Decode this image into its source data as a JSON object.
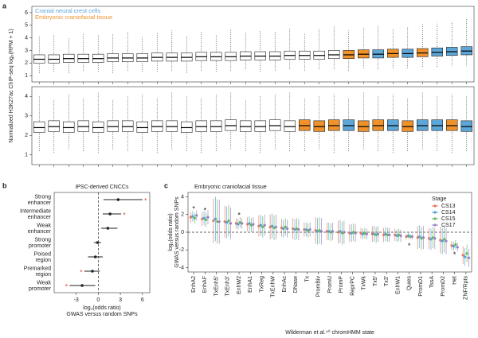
{
  "chart_data": [
    {
      "type": "box",
      "panel": "a",
      "ylabel": "Normalized H3K27ac ChIP-seq log₂(RPM + 1)",
      "series": [
        {
          "name": "Cranial neural crest cells",
          "color": "#5da6d8"
        },
        {
          "name": "Embryonic craniofacial tissue",
          "color": "#f0922b"
        }
      ],
      "ylim": [
        0.5,
        6.5
      ],
      "yticks": [
        1,
        2,
        3,
        4,
        5,
        6
      ],
      "low": [
        1.2,
        1.3,
        1.2,
        1.4,
        1.3,
        1.2,
        1.4,
        1.3,
        1.3,
        1.4,
        1.2,
        1.4,
        1.3,
        1.4,
        1.5,
        1.3,
        1.4,
        1.5,
        1.4,
        1.5,
        1.5,
        1.4,
        1.6,
        1.5,
        1.6,
        1.6,
        1.7,
        1.7,
        1.8,
        1.8
      ],
      "q1": [
        2.0,
        2.0,
        2.05,
        2.05,
        2.05,
        2.1,
        2.1,
        2.1,
        2.15,
        2.15,
        2.15,
        2.2,
        2.2,
        2.2,
        2.25,
        2.25,
        2.25,
        2.3,
        2.3,
        2.3,
        2.35,
        2.35,
        2.4,
        2.4,
        2.45,
        2.45,
        2.5,
        2.55,
        2.6,
        2.65
      ],
      "median": [
        2.3,
        2.3,
        2.35,
        2.35,
        2.35,
        2.4,
        2.4,
        2.4,
        2.45,
        2.45,
        2.45,
        2.5,
        2.5,
        2.5,
        2.55,
        2.55,
        2.55,
        2.6,
        2.6,
        2.6,
        2.65,
        2.65,
        2.7,
        2.7,
        2.75,
        2.75,
        2.8,
        2.85,
        2.9,
        2.95
      ],
      "q3": [
        2.65,
        2.65,
        2.7,
        2.7,
        2.7,
        2.75,
        2.75,
        2.75,
        2.8,
        2.8,
        2.8,
        2.85,
        2.85,
        2.85,
        2.9,
        2.9,
        2.9,
        2.95,
        2.95,
        2.95,
        3.0,
        3.0,
        3.05,
        3.05,
        3.1,
        3.1,
        3.15,
        3.2,
        3.25,
        3.3
      ],
      "high": [
        4.1,
        4.3,
        4.0,
        4.4,
        4.2,
        4.3,
        4.5,
        4.1,
        4.4,
        4.6,
        4.2,
        4.5,
        4.3,
        4.7,
        4.4,
        4.6,
        4.5,
        4.8,
        4.4,
        4.7,
        4.9,
        4.6,
        4.8,
        5.0,
        4.7,
        4.9,
        5.1,
        5.2,
        5.3,
        5.5
      ],
      "groups": [
        null,
        null,
        null,
        null,
        null,
        null,
        null,
        null,
        null,
        null,
        null,
        null,
        null,
        null,
        null,
        null,
        null,
        null,
        null,
        null,
        null,
        1,
        1,
        0,
        1,
        0,
        1,
        0,
        0,
        0
      ]
    },
    {
      "type": "box",
      "ylim": [
        0.5,
        4.5
      ],
      "yticks": [
        1,
        2,
        3,
        4
      ],
      "low": [
        1.2,
        1.1,
        1.3,
        1.2,
        1.1,
        1.3,
        1.2,
        1.2,
        1.1,
        1.3,
        1.2,
        1.1,
        1.2,
        1.3,
        1.2,
        1.1,
        1.3,
        1.2,
        1.2,
        1.3,
        1.1,
        1.2,
        1.3,
        1.2,
        1.1,
        1.2,
        1.3,
        1.2,
        1.1,
        1.2
      ],
      "q1": [
        2.15,
        2.2,
        2.15,
        2.2,
        2.15,
        2.2,
        2.2,
        2.15,
        2.2,
        2.2,
        2.15,
        2.2,
        2.2,
        2.25,
        2.2,
        2.2,
        2.25,
        2.2,
        2.25,
        2.2,
        2.25,
        2.25,
        2.2,
        2.25,
        2.25,
        2.2,
        2.25,
        2.25,
        2.25,
        2.2
      ],
      "median": [
        2.4,
        2.45,
        2.4,
        2.45,
        2.4,
        2.45,
        2.45,
        2.4,
        2.45,
        2.45,
        2.4,
        2.45,
        2.45,
        2.5,
        2.45,
        2.45,
        2.5,
        2.45,
        2.5,
        2.45,
        2.5,
        2.5,
        2.45,
        2.5,
        2.5,
        2.45,
        2.5,
        2.5,
        2.5,
        2.45
      ],
      "q3": [
        2.7,
        2.75,
        2.7,
        2.75,
        2.7,
        2.75,
        2.75,
        2.7,
        2.75,
        2.75,
        2.7,
        2.75,
        2.75,
        2.8,
        2.75,
        2.75,
        2.8,
        2.75,
        2.8,
        2.75,
        2.8,
        2.8,
        2.75,
        2.8,
        2.8,
        2.75,
        2.8,
        2.8,
        2.8,
        2.75
      ],
      "high": [
        4.0,
        3.8,
        4.1,
        3.9,
        4.2,
        3.8,
        4.0,
        4.1,
        3.9,
        4.2,
        4.0,
        3.9,
        4.1,
        4.2,
        3.8,
        4.0,
        4.1,
        4.2,
        3.9,
        4.0,
        4.1,
        3.9,
        4.2,
        4.0,
        4.1,
        3.9,
        4.2,
        4.0,
        4.1,
        4.0
      ],
      "groups": [
        null,
        null,
        null,
        null,
        null,
        null,
        null,
        null,
        null,
        null,
        null,
        null,
        null,
        null,
        null,
        null,
        null,
        null,
        1,
        1,
        1,
        0,
        1,
        1,
        0,
        1,
        0,
        0,
        1,
        0
      ]
    },
    {
      "type": "forest",
      "panel": "b",
      "title": "iPSC-derived CNCCs",
      "categories": [
        [
          "Strong",
          "enhancer"
        ],
        [
          "Intermediate",
          "enhancer"
        ],
        [
          "Weak",
          "enhancer"
        ],
        [
          "Strong",
          "promoter"
        ],
        [
          "Poised",
          "region"
        ],
        [
          "Premarked",
          "region"
        ],
        [
          "Weak",
          "promoter"
        ]
      ],
      "values": [
        2.7,
        1.6,
        1.3,
        -0.1,
        -0.4,
        -0.8,
        -2.2
      ],
      "ci_low": [
        0.7,
        0.6,
        0.4,
        -0.6,
        -1.4,
        -1.9,
        -3.9
      ],
      "ci_high": [
        6.0,
        3.1,
        2.6,
        0.4,
        0.6,
        0.2,
        -0.4
      ],
      "annotations": [
        {
          "text": "*",
          "category": 0,
          "side": "high"
        },
        {
          "text": "*",
          "category": 1,
          "side": "high"
        },
        {
          "text": "*",
          "category": 5,
          "side": "low"
        },
        {
          "text": "*",
          "category": 6,
          "side": "low"
        }
      ],
      "xlim": [
        -6,
        7
      ],
      "xticks": [
        -3,
        0,
        3,
        6
      ],
      "vline": 0,
      "color": "#222222",
      "star_color": "#e8534a",
      "xlabel": [
        "log₂(odds ratio)",
        "GWAS versus random SNPs"
      ]
    },
    {
      "type": "dots",
      "panel": "c",
      "title": "Embryonic craniofacial tissue",
      "categories": [
        "EnhA2",
        "EnhAF",
        "TxEnh5'",
        "TxEnh3'",
        "EnhW2",
        "EnhA1",
        "TxReg",
        "TxEnhW",
        "EnhAc",
        "DNase",
        "Tx",
        "PromBiv",
        "PromU",
        "PromP",
        "ReprPC",
        "TxWk",
        "Tx5'",
        "Tx3'",
        "EnhW1",
        "Quies",
        "PromD1",
        "TssA",
        "PromD2",
        "Het",
        "ZNF/Rpts"
      ],
      "legend_title": "Stage",
      "series": [
        {
          "name": "CS13",
          "color": "#e8735a",
          "values": [
            1.7,
            1.5,
            1.3,
            1.2,
            1.0,
            0.9,
            0.7,
            0.6,
            0.5,
            0.4,
            0.3,
            0.2,
            0.1,
            0.0,
            -0.1,
            -0.1,
            -0.2,
            -0.3,
            -0.3,
            -0.5,
            -0.6,
            -0.7,
            -0.9,
            -1.5,
            -2.6
          ],
          "errors": [
            0.6,
            0.8,
            2.5,
            1.8,
            0.6,
            0.8,
            1.2,
            1.4,
            1.0,
            1.2,
            0.8,
            1.5,
            1.0,
            1.3,
            1.0,
            0.6,
            0.9,
            0.8,
            0.7,
            0.3,
            1.3,
            1.2,
            1.5,
            0.5,
            1.0
          ]
        },
        {
          "name": "CS14",
          "color": "#4ba3d6",
          "values": [
            1.8,
            1.6,
            1.5,
            1.1,
            0.9,
            1.0,
            0.8,
            0.7,
            0.4,
            0.3,
            0.3,
            0.1,
            0.1,
            0.1,
            -0.1,
            -0.2,
            -0.2,
            -0.2,
            -0.4,
            -0.4,
            -0.5,
            -0.8,
            -1.0,
            -1.6,
            -2.8
          ],
          "errors": [
            0.6,
            0.8,
            2.5,
            1.8,
            0.6,
            0.8,
            1.2,
            1.4,
            1.0,
            1.2,
            0.8,
            1.5,
            1.0,
            1.3,
            1.0,
            0.6,
            0.9,
            0.8,
            0.7,
            0.3,
            1.3,
            1.2,
            1.5,
            0.5,
            1.0
          ]
        },
        {
          "name": "CS15",
          "color": "#5cb85c",
          "values": [
            1.6,
            1.4,
            1.2,
            1.3,
            1.1,
            0.8,
            0.6,
            0.5,
            0.6,
            0.4,
            0.2,
            0.2,
            0.0,
            -0.1,
            0.0,
            -0.1,
            -0.3,
            -0.3,
            -0.3,
            -0.5,
            -0.7,
            -0.6,
            -0.8,
            -1.4,
            -2.4
          ],
          "errors": [
            0.6,
            0.8,
            2.5,
            1.8,
            0.6,
            0.8,
            1.2,
            1.4,
            1.0,
            1.2,
            0.8,
            1.5,
            1.0,
            1.3,
            1.0,
            0.6,
            0.9,
            0.8,
            0.7,
            0.3,
            1.3,
            1.2,
            1.5,
            0.5,
            1.0
          ]
        },
        {
          "name": "CS17",
          "color": "#9b7fc4",
          "values": [
            1.9,
            1.7,
            1.2,
            1.0,
            1.0,
            0.9,
            0.8,
            0.6,
            0.4,
            0.3,
            0.3,
            0.1,
            0.1,
            0.0,
            -0.1,
            -0.2,
            -0.2,
            -0.3,
            -0.4,
            -0.5,
            -0.6,
            -0.7,
            -1.0,
            -1.7,
            -2.9
          ],
          "errors": [
            0.6,
            0.8,
            2.5,
            1.8,
            0.6,
            0.8,
            1.2,
            1.4,
            1.0,
            1.2,
            0.8,
            1.5,
            1.0,
            1.3,
            1.0,
            0.6,
            0.9,
            0.8,
            0.7,
            0.3,
            1.3,
            1.2,
            1.5,
            0.5,
            1.0
          ]
        }
      ],
      "annotations": [
        {
          "text": "*",
          "category": 0,
          "side": "high"
        },
        {
          "text": "*",
          "category": 1,
          "side": "high"
        },
        {
          "text": "*",
          "category": 4,
          "side": "high"
        },
        {
          "text": "*",
          "category": 19,
          "side": "low"
        },
        {
          "text": "*",
          "category": 23,
          "side": "low"
        }
      ],
      "ylim": [
        -4.5,
        4.5
      ],
      "yticks": [
        -4,
        -2,
        0,
        2,
        4
      ],
      "hline": 0,
      "ylabel": [
        "log₂(odds ratio)",
        "GWAS versus random SNPs"
      ],
      "xlabel": "Wilderman et al.⁴⁰ chromHMM state"
    }
  ]
}
